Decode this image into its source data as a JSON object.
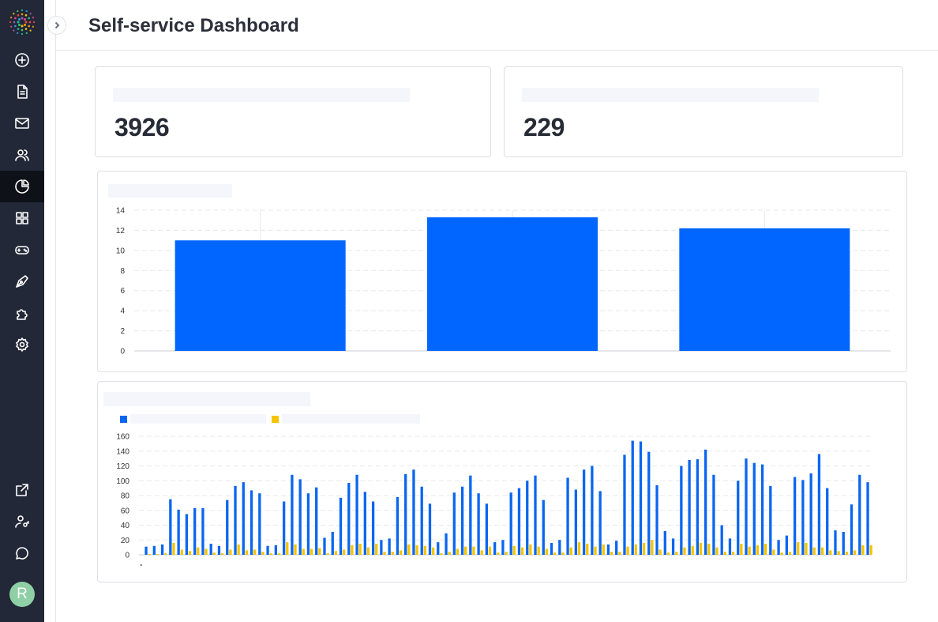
{
  "header": {
    "title": "Self-service Dashboard"
  },
  "sidebar": {
    "items": [
      {
        "icon": "plus-circle-icon"
      },
      {
        "icon": "document-icon"
      },
      {
        "icon": "mail-icon"
      },
      {
        "icon": "users-icon"
      },
      {
        "icon": "pie-chart-icon",
        "active": true
      },
      {
        "icon": "grid-icon"
      },
      {
        "icon": "gamepad-icon"
      },
      {
        "icon": "pen-tool-icon"
      },
      {
        "icon": "puzzle-icon"
      },
      {
        "icon": "settings-icon"
      }
    ],
    "bottom_items": [
      {
        "icon": "external-link-icon"
      },
      {
        "icon": "user-key-icon"
      },
      {
        "icon": "chat-icon"
      }
    ],
    "avatar_letter": "R"
  },
  "kpis": [
    {
      "value": "3926"
    },
    {
      "value": "229"
    }
  ],
  "chart_data": [
    {
      "type": "bar",
      "categories": [
        "",
        "",
        ""
      ],
      "values": [
        11,
        13.3,
        12.2
      ],
      "ylim": [
        0,
        14
      ],
      "yticks": [
        0,
        2,
        4,
        6,
        8,
        10,
        12,
        14
      ],
      "grid": true,
      "colors": [
        "#0066ff"
      ]
    },
    {
      "type": "bar",
      "ylim": [
        0,
        160
      ],
      "yticks": [
        0,
        20,
        40,
        60,
        80,
        100,
        120,
        140,
        160
      ],
      "grid": true,
      "legend": "top-left",
      "series": [
        {
          "color": "#0a66f0",
          "values": [
            11,
            12,
            14,
            75,
            61,
            55,
            63,
            63,
            15,
            12,
            74,
            93,
            98,
            87,
            83,
            12,
            13,
            72,
            108,
            102,
            83,
            91,
            23,
            31,
            77,
            97,
            108,
            85,
            72,
            20,
            22,
            78,
            109,
            115,
            92,
            69,
            17,
            29,
            84,
            92,
            107,
            83,
            69,
            17,
            20,
            84,
            90,
            100,
            107,
            74,
            16,
            20,
            104,
            88,
            115,
            120,
            86,
            14,
            19,
            135,
            154,
            153,
            139,
            94,
            32,
            22,
            120,
            128,
            129,
            142,
            108,
            40,
            22,
            100,
            130,
            124,
            122,
            93,
            20,
            26,
            105,
            101,
            110,
            136,
            90,
            33,
            31,
            68,
            108,
            98
          ]
        },
        {
          "color": "#f5c400",
          "values": [
            1,
            1,
            2,
            16,
            7,
            5,
            10,
            8,
            3,
            2,
            7,
            14,
            6,
            7,
            4,
            2,
            2,
            17,
            14,
            8,
            8,
            9,
            2,
            5,
            7,
            13,
            15,
            10,
            15,
            4,
            4,
            6,
            14,
            13,
            12,
            10,
            2,
            4,
            8,
            11,
            11,
            6,
            11,
            3,
            4,
            12,
            10,
            14,
            11,
            8,
            3,
            3,
            10,
            17,
            15,
            11,
            14,
            4,
            4,
            11,
            14,
            16,
            20,
            7,
            3,
            4,
            10,
            12,
            16,
            15,
            10,
            4,
            4,
            15,
            11,
            13,
            15,
            7,
            3,
            4,
            17,
            16,
            10,
            10,
            6,
            5,
            4,
            6,
            13,
            13
          ]
        }
      ]
    }
  ]
}
